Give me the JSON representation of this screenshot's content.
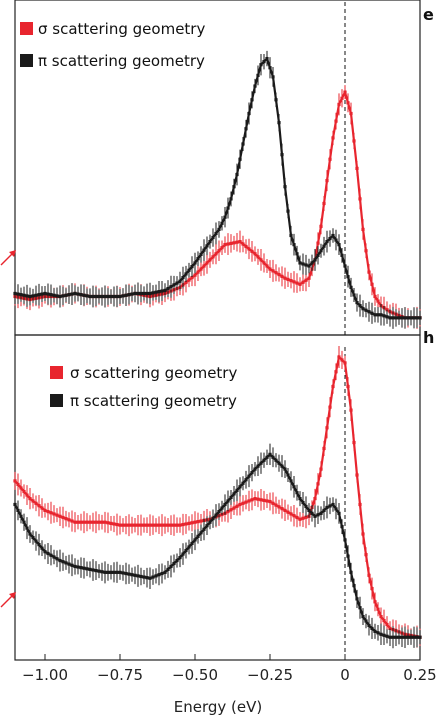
{
  "chart_data": [
    {
      "type": "line",
      "panel_label": "e",
      "xlim": [
        -1.1,
        0.25
      ],
      "legend_position": "top-left",
      "vertical_reference_line": 0,
      "series": [
        {
          "name": "σ scattering geometry",
          "color": "#e8252e",
          "x": [
            -1.1,
            -1.05,
            -1.0,
            -0.95,
            -0.9,
            -0.85,
            -0.8,
            -0.75,
            -0.7,
            -0.65,
            -0.6,
            -0.55,
            -0.5,
            -0.45,
            -0.4,
            -0.35,
            -0.3,
            -0.25,
            -0.2,
            -0.15,
            -0.12,
            -0.1,
            -0.08,
            -0.06,
            -0.04,
            -0.02,
            0.0,
            0.02,
            0.04,
            0.06,
            0.08,
            0.1,
            0.12,
            0.15,
            0.2,
            0.25
          ],
          "y": [
            0.1,
            0.09,
            0.1,
            0.1,
            0.11,
            0.1,
            0.1,
            0.1,
            0.11,
            0.1,
            0.11,
            0.13,
            0.17,
            0.22,
            0.27,
            0.28,
            0.24,
            0.19,
            0.16,
            0.14,
            0.16,
            0.22,
            0.33,
            0.48,
            0.62,
            0.73,
            0.77,
            0.7,
            0.52,
            0.32,
            0.18,
            0.1,
            0.07,
            0.05,
            0.03,
            0.03
          ]
        },
        {
          "name": "π scattering geometry",
          "color": "#1a1a1a",
          "x": [
            -1.1,
            -1.05,
            -1.0,
            -0.95,
            -0.9,
            -0.85,
            -0.8,
            -0.75,
            -0.7,
            -0.65,
            -0.6,
            -0.55,
            -0.5,
            -0.45,
            -0.42,
            -0.4,
            -0.38,
            -0.36,
            -0.34,
            -0.32,
            -0.3,
            -0.28,
            -0.26,
            -0.24,
            -0.22,
            -0.2,
            -0.18,
            -0.15,
            -0.12,
            -0.1,
            -0.08,
            -0.06,
            -0.04,
            -0.02,
            0.0,
            0.02,
            0.04,
            0.06,
            0.08,
            0.1,
            0.12,
            0.15,
            0.2,
            0.25
          ],
          "y": [
            0.11,
            0.1,
            0.11,
            0.1,
            0.11,
            0.1,
            0.1,
            0.1,
            0.11,
            0.11,
            0.12,
            0.15,
            0.21,
            0.28,
            0.32,
            0.36,
            0.42,
            0.5,
            0.6,
            0.7,
            0.79,
            0.86,
            0.88,
            0.82,
            0.67,
            0.46,
            0.3,
            0.21,
            0.2,
            0.22,
            0.25,
            0.28,
            0.3,
            0.27,
            0.2,
            0.13,
            0.08,
            0.06,
            0.05,
            0.04,
            0.04,
            0.03,
            0.03,
            0.03
          ]
        }
      ]
    },
    {
      "type": "line",
      "panel_label": "h",
      "xlim": [
        -1.1,
        0.25
      ],
      "xticks": [
        -1.0,
        -0.75,
        -0.5,
        -0.25,
        0,
        0.25
      ],
      "xtick_labels": [
        "−1.00",
        "−0.75",
        "−0.50",
        "−0.25",
        "0",
        "0.25"
      ],
      "xlabel": "Energy (eV)",
      "legend_position": "top-left",
      "vertical_reference_line": 0,
      "series": [
        {
          "name": "σ scattering geometry",
          "color": "#e8252e",
          "x": [
            -1.1,
            -1.05,
            -1.0,
            -0.95,
            -0.9,
            -0.85,
            -0.8,
            -0.75,
            -0.7,
            -0.65,
            -0.6,
            -0.55,
            -0.5,
            -0.45,
            -0.4,
            -0.35,
            -0.3,
            -0.25,
            -0.2,
            -0.15,
            -0.12,
            -0.1,
            -0.08,
            -0.06,
            -0.04,
            -0.02,
            0.0,
            0.02,
            0.04,
            0.06,
            0.08,
            0.1,
            0.12,
            0.15,
            0.2,
            0.25
          ],
          "y": [
            0.58,
            0.52,
            0.48,
            0.46,
            0.44,
            0.44,
            0.44,
            0.43,
            0.43,
            0.43,
            0.43,
            0.43,
            0.44,
            0.45,
            0.47,
            0.5,
            0.52,
            0.51,
            0.48,
            0.45,
            0.46,
            0.52,
            0.62,
            0.76,
            0.9,
            1.0,
            0.98,
            0.82,
            0.6,
            0.4,
            0.26,
            0.17,
            0.12,
            0.08,
            0.06,
            0.05
          ]
        },
        {
          "name": "π scattering geometry",
          "color": "#1a1a1a",
          "x": [
            -1.1,
            -1.05,
            -1.0,
            -0.95,
            -0.9,
            -0.85,
            -0.8,
            -0.75,
            -0.7,
            -0.65,
            -0.6,
            -0.55,
            -0.5,
            -0.45,
            -0.4,
            -0.35,
            -0.3,
            -0.25,
            -0.2,
            -0.15,
            -0.12,
            -0.1,
            -0.08,
            -0.06,
            -0.04,
            -0.02,
            0.0,
            0.02,
            0.04,
            0.06,
            0.08,
            0.1,
            0.12,
            0.15,
            0.2,
            0.25
          ],
          "y": [
            0.5,
            0.4,
            0.34,
            0.31,
            0.29,
            0.28,
            0.27,
            0.27,
            0.26,
            0.25,
            0.27,
            0.32,
            0.38,
            0.44,
            0.5,
            0.56,
            0.62,
            0.67,
            0.62,
            0.52,
            0.48,
            0.46,
            0.47,
            0.49,
            0.5,
            0.47,
            0.38,
            0.27,
            0.18,
            0.12,
            0.09,
            0.07,
            0.06,
            0.05,
            0.05,
            0.05
          ]
        }
      ]
    }
  ],
  "legend": {
    "sigma_label": "σ scattering geometry",
    "pi_label": "π scattering geometry"
  },
  "panel_letters": {
    "top": "e",
    "bottom": "h"
  },
  "x_axis": {
    "label": "Energy (eV)",
    "tick_labels": [
      "−1.00",
      "−0.75",
      "−0.50",
      "−0.25",
      "0",
      "0.25"
    ]
  }
}
